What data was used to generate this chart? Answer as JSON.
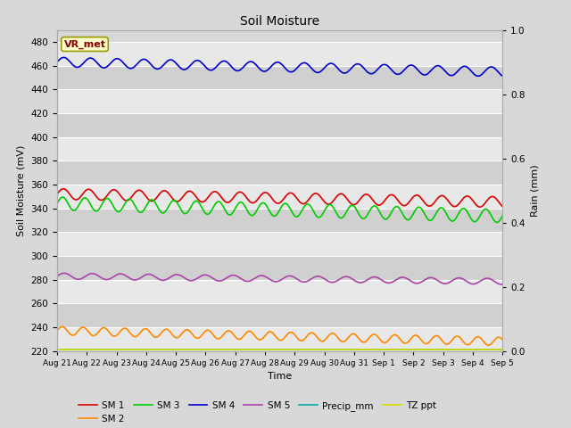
{
  "title": "Soil Moisture",
  "xlabel": "Time",
  "ylabel_left": "Soil Moisture (mV)",
  "ylabel_right": "Rain (mm)",
  "ylim_left": [
    220,
    490
  ],
  "ylim_right": [
    0.0,
    1.0
  ],
  "yticks_left": [
    220,
    240,
    260,
    280,
    300,
    320,
    340,
    360,
    380,
    400,
    420,
    440,
    460,
    480
  ],
  "yticks_right": [
    0.0,
    0.2,
    0.4,
    0.6,
    0.8,
    1.0
  ],
  "xtick_labels": [
    "Aug 21",
    "Aug 22",
    "Aug 23",
    "Aug 24",
    "Aug 25",
    "Aug 26",
    "Aug 27",
    "Aug 28",
    "Aug 29",
    "Aug 30",
    "Aug 31",
    "Sep 1",
    "Sep 2",
    "Sep 3",
    "Sep 4",
    "Sep 5"
  ],
  "fig_facecolor": "#d8d8d8",
  "axes_facecolor": "#d8d8d8",
  "band_colors": [
    "#e8e8e8",
    "#d0d0d0"
  ],
  "grid_color": "#ffffff",
  "annotation_text": "VR_met",
  "annotation_facecolor": "#ffffcc",
  "annotation_edgecolor": "#999900",
  "annotation_textcolor": "#880000",
  "series": {
    "SM1": {
      "label": "SM 1",
      "color": "#dd0000",
      "base": 352,
      "amplitude": 4.5,
      "trend": -0.45,
      "period": 0.85
    },
    "SM2": {
      "label": "SM 2",
      "color": "#ff8800",
      "base": 237,
      "amplitude": 3.5,
      "trend": -0.6,
      "period": 0.7
    },
    "SM3": {
      "label": "SM 3",
      "color": "#00cc00",
      "base": 344,
      "amplitude": 5.5,
      "trend": -0.7,
      "period": 0.75
    },
    "SM4": {
      "label": "SM 4",
      "color": "#0000cc",
      "base": 463,
      "amplitude": 4.0,
      "trend": -0.55,
      "period": 0.9
    },
    "SM5": {
      "label": "SM 5",
      "color": "#aa44aa",
      "base": 283,
      "amplitude": 2.5,
      "trend": -0.3,
      "period": 0.95
    },
    "Precip_mm": {
      "label": "Precip_mm",
      "color": "#00aaaa",
      "base": 221,
      "amplitude": 0,
      "trend": 0,
      "period": 1.0
    },
    "TZ_ppt": {
      "label": "TZ ppt",
      "color": "#dddd00",
      "base": 221,
      "amplitude": 0,
      "trend": 0,
      "period": 1.0
    }
  },
  "n_points": 500,
  "legend_order": [
    "SM1",
    "SM2",
    "SM3",
    "SM4",
    "SM5",
    "Precip_mm",
    "TZ_ppt"
  ]
}
